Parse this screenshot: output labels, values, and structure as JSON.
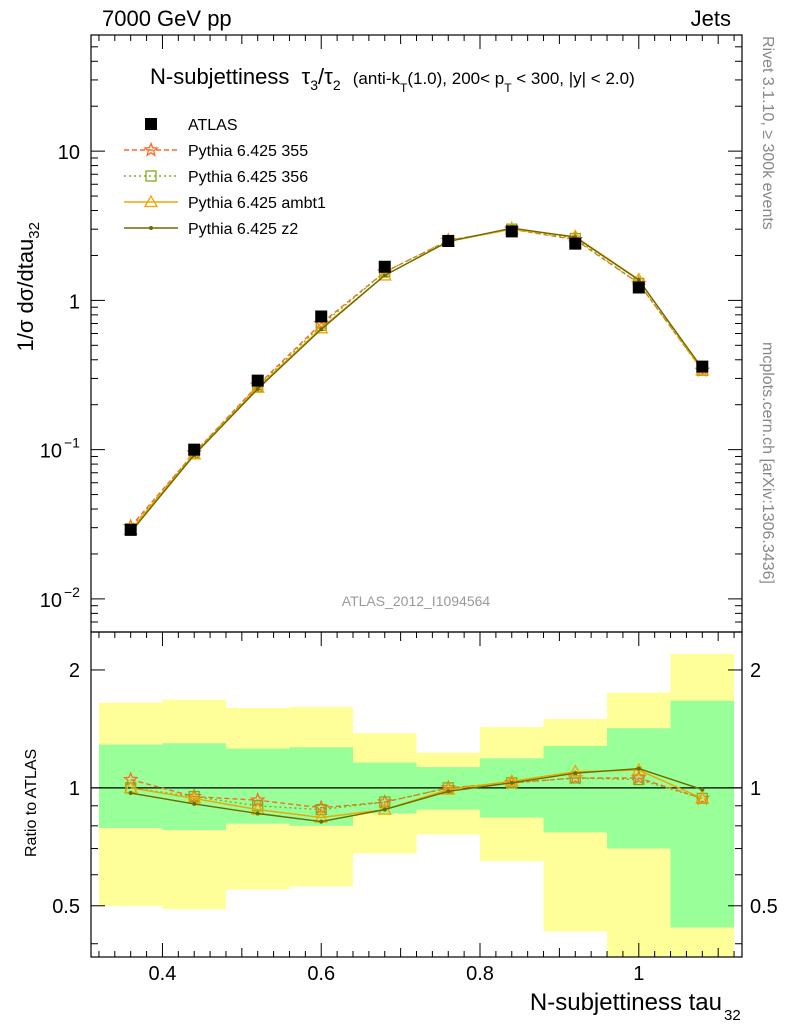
{
  "header": {
    "left": "7000 GeV pp",
    "right": "Jets"
  },
  "side_labels": {
    "rivet": "Rivet 3.1.10, ≥ 300k events",
    "mcplots": "mcplots.cern.ch [arXiv:1306.3436]"
  },
  "plot_title": {
    "main": "N-subjettiness",
    "tau3": "τ",
    "sub3": "3",
    "slash": "/",
    "tau2": "τ",
    "sub2": "2",
    "cuts_a": "(anti-k",
    "cuts_t": "T",
    "cuts_b": "(1.0), 200< p",
    "cuts_t2": "T",
    "cuts_c": " < 300, |y| < 2.0)"
  },
  "analysis_id": "ATLAS_2012_I1094564",
  "axes": {
    "ylabel_main": "1/σ dσ/dtau",
    "ylabel_main_sub": "32",
    "ylabel_ratio": "Ratio to ATLAS",
    "xlabel": "N-subjettiness tau",
    "xlabel_sub": "32",
    "main_ticks": [
      {
        "base": "10",
        "exp": "−2",
        "value": 0.01
      },
      {
        "base": "10",
        "exp": "−1",
        "value": 0.1
      },
      {
        "base": "1",
        "exp": "",
        "value": 1
      },
      {
        "base": "10",
        "exp": "",
        "value": 10
      }
    ],
    "ratio_ticks": [
      "0.5",
      "1",
      "2"
    ],
    "x_ticks": [
      "0.4",
      "0.6",
      "0.8",
      "1"
    ]
  },
  "chart_data": {
    "type": "line",
    "xlim": [
      0.31,
      1.13
    ],
    "ylim_main": [
      0.006,
      60
    ],
    "ylim_ratio": [
      0.37,
      2.5
    ],
    "log_y": true,
    "legend_position": "top-left",
    "x": [
      0.36,
      0.44,
      0.52,
      0.6,
      0.68,
      0.76,
      0.84,
      0.92,
      1.0,
      1.08
    ],
    "bin_edges": [
      0.32,
      0.4,
      0.48,
      0.56,
      0.64,
      0.72,
      0.8,
      0.88,
      0.96,
      1.04,
      1.12
    ],
    "data": {
      "name": "ATLAS",
      "values": [
        0.029,
        0.1,
        0.29,
        0.78,
        1.68,
        2.5,
        2.9,
        2.4,
        1.22,
        0.36
      ],
      "color": "#000000"
    },
    "series": [
      {
        "name": "Pythia 6.425 355",
        "color": "#ff6a22",
        "marker": "star",
        "dash": "5,3",
        "values": [
          0.0305,
          0.095,
          0.27,
          0.7,
          1.55,
          2.52,
          3.0,
          2.55,
          1.3,
          0.34
        ],
        "ratio": [
          1.05,
          0.95,
          0.93,
          0.89,
          0.92,
          1.0,
          1.03,
          1.06,
          1.06,
          0.94
        ]
      },
      {
        "name": "Pythia 6.425 356",
        "color": "#7fae1a",
        "marker": "square",
        "dash": "2,3",
        "values": [
          0.0295,
          0.095,
          0.265,
          0.68,
          1.55,
          2.52,
          3.0,
          2.6,
          1.3,
          0.34
        ],
        "ratio": [
          1.0,
          0.95,
          0.9,
          0.88,
          0.92,
          1.0,
          1.03,
          1.06,
          1.05,
          0.94
        ]
      },
      {
        "name": "Pythia 6.425 ambt1",
        "color": "#f0a500",
        "marker": "triangle",
        "dash": "",
        "values": [
          0.029,
          0.093,
          0.26,
          0.65,
          1.47,
          2.48,
          3.0,
          2.68,
          1.38,
          0.34
        ],
        "ratio": [
          1.0,
          0.94,
          0.88,
          0.84,
          0.88,
          0.99,
          1.04,
          1.1,
          1.11,
          0.94
        ]
      },
      {
        "name": "Pythia 6.425 z2",
        "color": "#6b6b00",
        "marker": "dot",
        "dash": "",
        "values": [
          0.028,
          0.092,
          0.255,
          0.64,
          1.47,
          2.48,
          3.05,
          2.65,
          1.37,
          0.35
        ],
        "ratio": [
          0.97,
          0.91,
          0.86,
          0.82,
          0.88,
          0.98,
          1.03,
          1.09,
          1.12,
          0.99
        ]
      }
    ],
    "uncertainty_bands": {
      "yellow": [
        {
          "lo": 0.5,
          "hi": 1.65
        },
        {
          "lo": 0.49,
          "hi": 1.68
        },
        {
          "lo": 0.55,
          "hi": 1.6
        },
        {
          "lo": 0.56,
          "hi": 1.61
        },
        {
          "lo": 0.68,
          "hi": 1.38
        },
        {
          "lo": 0.76,
          "hi": 1.23
        },
        {
          "lo": 0.65,
          "hi": 1.43
        },
        {
          "lo": 0.43,
          "hi": 1.5
        },
        {
          "lo": 0.33,
          "hi": 1.75
        },
        {
          "lo": 0.2,
          "hi": 2.2
        }
      ],
      "green": [
        {
          "lo": 0.79,
          "hi": 1.29
        },
        {
          "lo": 0.78,
          "hi": 1.3
        },
        {
          "lo": 0.81,
          "hi": 1.26
        },
        {
          "lo": 0.8,
          "hi": 1.27
        },
        {
          "lo": 0.86,
          "hi": 1.16
        },
        {
          "lo": 0.88,
          "hi": 1.13
        },
        {
          "lo": 0.84,
          "hi": 1.19
        },
        {
          "lo": 0.77,
          "hi": 1.28
        },
        {
          "lo": 0.7,
          "hi": 1.42
        },
        {
          "lo": 0.44,
          "hi": 1.67
        }
      ],
      "yellow_color": "#ffff99",
      "green_color": "#99ff99"
    }
  }
}
